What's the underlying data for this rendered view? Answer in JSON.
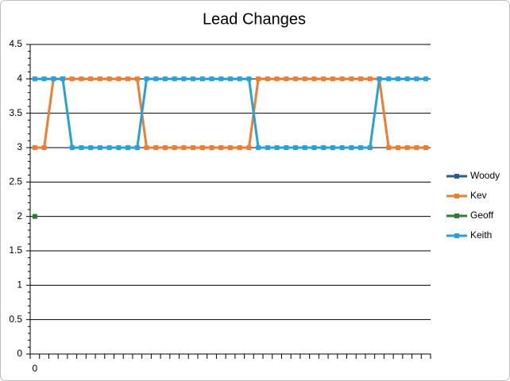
{
  "chart_data": {
    "type": "line",
    "title": "Lead Changes",
    "categories": [
      "0",
      null,
      null,
      null,
      null,
      null,
      null,
      null,
      null,
      null,
      null,
      null,
      null,
      null,
      null,
      null,
      null,
      null,
      null,
      null,
      null,
      null,
      null,
      null,
      null,
      null,
      null,
      null,
      null,
      null,
      null,
      null,
      null,
      null,
      null,
      null,
      null,
      null,
      null,
      null,
      null,
      null,
      null
    ],
    "series": [
      {
        "name": "Woody",
        "color": "#255e91",
        "values": [
          null,
          null,
          null,
          null,
          null,
          null,
          null,
          null,
          null,
          null,
          null,
          null,
          null,
          null,
          null,
          null,
          null,
          null,
          null,
          null,
          null,
          null,
          null,
          null,
          null,
          null,
          null,
          null,
          null,
          null,
          null,
          null,
          null,
          null,
          null,
          null,
          null,
          null,
          null,
          null,
          null,
          null,
          null
        ]
      },
      {
        "name": "Kev",
        "color": "#ed7d31",
        "values": [
          3,
          3,
          4,
          4,
          4,
          4,
          4,
          4,
          4,
          4,
          4,
          4,
          3,
          3,
          3,
          3,
          3,
          3,
          3,
          3,
          3,
          3,
          3,
          3,
          4,
          4,
          4,
          4,
          4,
          4,
          4,
          4,
          4,
          4,
          4,
          4,
          4,
          4,
          3,
          3,
          3,
          3,
          3
        ]
      },
      {
        "name": "Geoff",
        "color": "#2a7d2e",
        "values": [
          2,
          null,
          null,
          null,
          null,
          null,
          null,
          null,
          null,
          null,
          null,
          null,
          null,
          null,
          null,
          null,
          null,
          null,
          null,
          null,
          null,
          null,
          null,
          null,
          null,
          null,
          null,
          null,
          null,
          null,
          null,
          null,
          null,
          null,
          null,
          null,
          null,
          null,
          null,
          null,
          null,
          null,
          null
        ]
      },
      {
        "name": "Keith",
        "color": "#26a2d8",
        "values": [
          4,
          4,
          4,
          4,
          3,
          3,
          3,
          3,
          3,
          3,
          3,
          3,
          4,
          4,
          4,
          4,
          4,
          4,
          4,
          4,
          4,
          4,
          4,
          4,
          3,
          3,
          3,
          3,
          3,
          3,
          3,
          3,
          3,
          3,
          3,
          3,
          3,
          4,
          4,
          4,
          4,
          4,
          4
        ]
      }
    ],
    "ylim": [
      0,
      4.5
    ],
    "yticks": [
      0,
      0.5,
      1,
      1.5,
      2,
      2.5,
      3,
      3.5,
      4,
      4.5
    ],
    "grid": true,
    "legend": "right"
  }
}
